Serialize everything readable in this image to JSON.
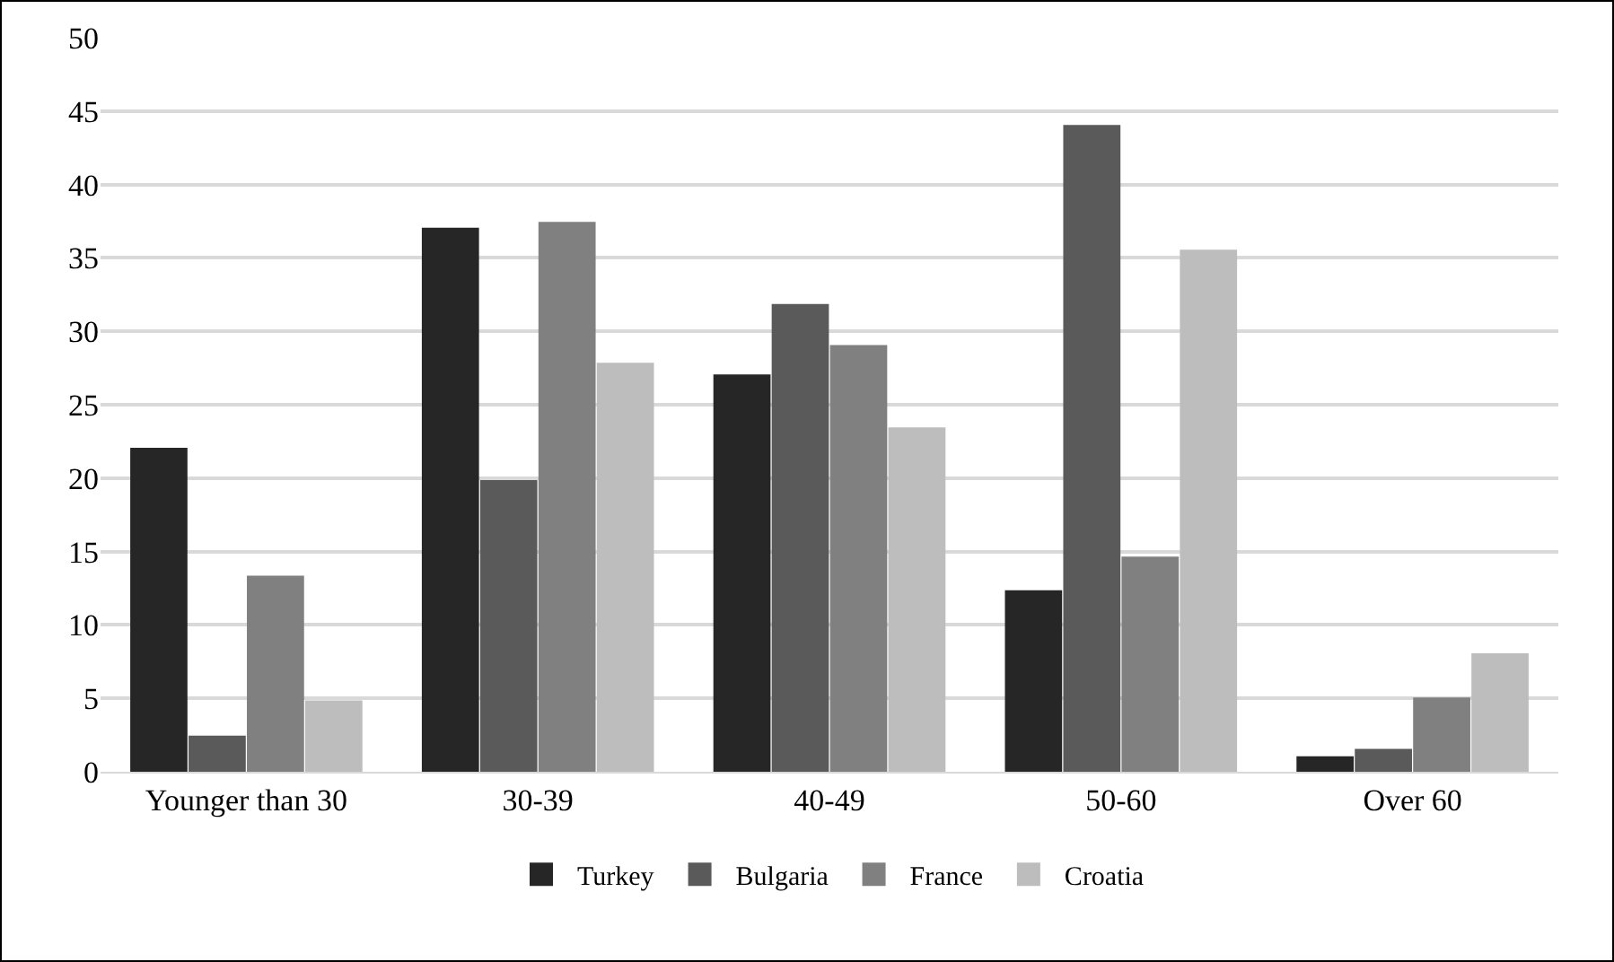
{
  "chart_data": {
    "type": "bar",
    "categories": [
      "Younger than 30",
      "30-39",
      "40-49",
      "50-60",
      "Over 60"
    ],
    "series": [
      {
        "name": "Turkey",
        "color": "#262626",
        "values": [
          22,
          37,
          27,
          12.3,
          1
        ]
      },
      {
        "name": "Bulgaria",
        "color": "#5a5a5a",
        "values": [
          2.4,
          19.8,
          31.8,
          44,
          1.5
        ]
      },
      {
        "name": "France",
        "color": "#808080",
        "values": [
          13.3,
          37.4,
          29,
          14.6,
          5
        ]
      },
      {
        "name": "Croatia",
        "color": "#bdbdbd",
        "values": [
          4.8,
          27.8,
          23.4,
          35.5,
          8
        ]
      }
    ],
    "ylim": [
      0,
      50
    ],
    "yticks": [
      0,
      5,
      10,
      15,
      20,
      25,
      30,
      35,
      40,
      45,
      50
    ],
    "grid": "y",
    "legend": "bottom"
  }
}
